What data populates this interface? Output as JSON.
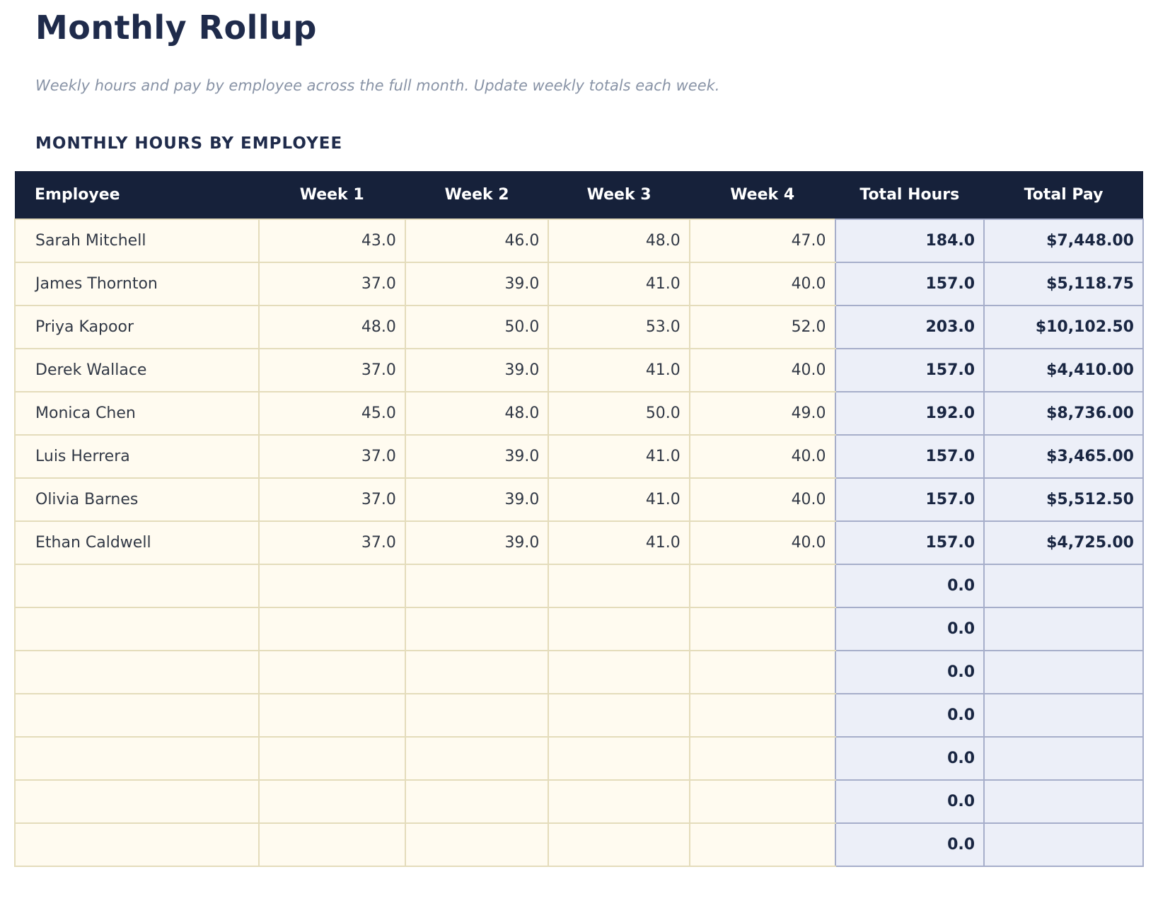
{
  "page": {
    "title": "Monthly Rollup",
    "subtitle": "Weekly hours and pay by employee across the full month. Update weekly totals each week.",
    "section_heading": "MONTHLY HOURS BY EMPLOYEE"
  },
  "colors": {
    "header_bg": "#16213A",
    "header_text": "#FFFFFF",
    "cream_cell_bg": "#FFFBF0",
    "cream_border": "#E4DCBB",
    "computed_cell_bg": "#ECEFF8",
    "computed_border": "#A6AECA",
    "accent_navy": "#1F2B4B",
    "totals_text": "#192642",
    "body_text": "#323946",
    "subtitle_text": "#8893A6",
    "page_bg": "#FFFFFF"
  },
  "table": {
    "columns": [
      "Employee",
      "Week 1",
      "Week 2",
      "Week 3",
      "Week 4",
      "Total Hours",
      "Total Pay"
    ],
    "rows": [
      {
        "employee": "Sarah Mitchell",
        "week1": "43.0",
        "week2": "46.0",
        "week3": "48.0",
        "week4": "47.0",
        "total_hours": "184.0",
        "total_pay": "$7,448.00"
      },
      {
        "employee": "James Thornton",
        "week1": "37.0",
        "week2": "39.0",
        "week3": "41.0",
        "week4": "40.0",
        "total_hours": "157.0",
        "total_pay": "$5,118.75"
      },
      {
        "employee": "Priya Kapoor",
        "week1": "48.0",
        "week2": "50.0",
        "week3": "53.0",
        "week4": "52.0",
        "total_hours": "203.0",
        "total_pay": "$10,102.50"
      },
      {
        "employee": "Derek Wallace",
        "week1": "37.0",
        "week2": "39.0",
        "week3": "41.0",
        "week4": "40.0",
        "total_hours": "157.0",
        "total_pay": "$4,410.00"
      },
      {
        "employee": "Monica Chen",
        "week1": "45.0",
        "week2": "48.0",
        "week3": "50.0",
        "week4": "49.0",
        "total_hours": "192.0",
        "total_pay": "$8,736.00"
      },
      {
        "employee": "Luis Herrera",
        "week1": "37.0",
        "week2": "39.0",
        "week3": "41.0",
        "week4": "40.0",
        "total_hours": "157.0",
        "total_pay": "$3,465.00"
      },
      {
        "employee": "Olivia Barnes",
        "week1": "37.0",
        "week2": "39.0",
        "week3": "41.0",
        "week4": "40.0",
        "total_hours": "157.0",
        "total_pay": "$5,512.50"
      },
      {
        "employee": "Ethan Caldwell",
        "week1": "37.0",
        "week2": "39.0",
        "week3": "41.0",
        "week4": "40.0",
        "total_hours": "157.0",
        "total_pay": "$4,725.00"
      },
      {
        "employee": "",
        "week1": "",
        "week2": "",
        "week3": "",
        "week4": "",
        "total_hours": "0.0",
        "total_pay": ""
      },
      {
        "employee": "",
        "week1": "",
        "week2": "",
        "week3": "",
        "week4": "",
        "total_hours": "0.0",
        "total_pay": ""
      },
      {
        "employee": "",
        "week1": "",
        "week2": "",
        "week3": "",
        "week4": "",
        "total_hours": "0.0",
        "total_pay": ""
      },
      {
        "employee": "",
        "week1": "",
        "week2": "",
        "week3": "",
        "week4": "",
        "total_hours": "0.0",
        "total_pay": ""
      },
      {
        "employee": "",
        "week1": "",
        "week2": "",
        "week3": "",
        "week4": "",
        "total_hours": "0.0",
        "total_pay": ""
      },
      {
        "employee": "",
        "week1": "",
        "week2": "",
        "week3": "",
        "week4": "",
        "total_hours": "0.0",
        "total_pay": ""
      },
      {
        "employee": "",
        "week1": "",
        "week2": "",
        "week3": "",
        "week4": "",
        "total_hours": "0.0",
        "total_pay": ""
      }
    ]
  }
}
